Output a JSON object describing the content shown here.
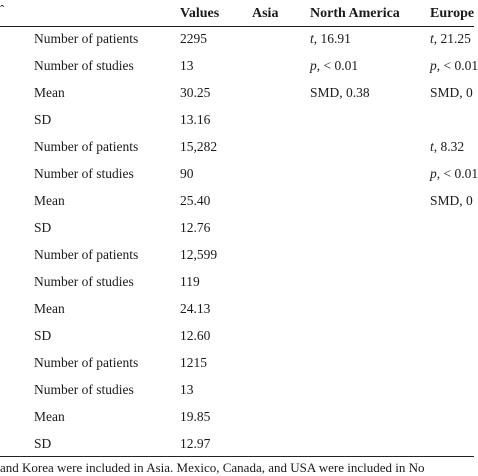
{
  "header": {
    "corner_mark": "ˆ",
    "values": "Values",
    "asia": "Asia",
    "north_america": "North America",
    "europe": "Europe"
  },
  "rows": [
    {
      "label": "Number of patients",
      "value": "2295",
      "na": {
        "key": "t",
        "rest": ", 16.91"
      },
      "eu": {
        "key": "t",
        "rest": ", 21.25"
      }
    },
    {
      "label": "Number of studies",
      "value": "13",
      "na": {
        "key": "p",
        "rest": ", < 0.01"
      },
      "eu": {
        "key": "p",
        "rest": ", < 0.01"
      }
    },
    {
      "label": "Mean",
      "value": "30.25",
      "na": {
        "key": "",
        "rest": "SMD, 0.38"
      },
      "eu": {
        "key": "",
        "rest": "SMD, 0"
      }
    },
    {
      "label": "SD",
      "value": "13.16",
      "na": {
        "key": "",
        "rest": ""
      },
      "eu": {
        "key": "",
        "rest": ""
      }
    },
    {
      "label": "Number of patients",
      "value": "15,282",
      "na": {
        "key": "",
        "rest": ""
      },
      "eu": {
        "key": "t",
        "rest": ", 8.32"
      }
    },
    {
      "label": "Number of studies",
      "value": "90",
      "na": {
        "key": "",
        "rest": ""
      },
      "eu": {
        "key": "p",
        "rest": ", < 0.01"
      }
    },
    {
      "label": "Mean",
      "value": "25.40",
      "na": {
        "key": "",
        "rest": ""
      },
      "eu": {
        "key": "",
        "rest": "SMD, 0"
      }
    },
    {
      "label": "SD",
      "value": "12.76",
      "na": {
        "key": "",
        "rest": ""
      },
      "eu": {
        "key": "",
        "rest": ""
      }
    },
    {
      "label": "Number of patients",
      "value": "12,599",
      "na": {
        "key": "",
        "rest": ""
      },
      "eu": {
        "key": "",
        "rest": ""
      }
    },
    {
      "label": "Number of studies",
      "value": "119",
      "na": {
        "key": "",
        "rest": ""
      },
      "eu": {
        "key": "",
        "rest": ""
      }
    },
    {
      "label": "Mean",
      "value": "24.13",
      "na": {
        "key": "",
        "rest": ""
      },
      "eu": {
        "key": "",
        "rest": ""
      }
    },
    {
      "label": "SD",
      "value": "12.60",
      "na": {
        "key": "",
        "rest": ""
      },
      "eu": {
        "key": "",
        "rest": ""
      }
    },
    {
      "label": "Number of patients",
      "value": "1215",
      "na": {
        "key": "",
        "rest": ""
      },
      "eu": {
        "key": "",
        "rest": ""
      }
    },
    {
      "label": "Number of studies",
      "value": "13",
      "na": {
        "key": "",
        "rest": ""
      },
      "eu": {
        "key": "",
        "rest": ""
      }
    },
    {
      "label": "Mean",
      "value": "19.85",
      "na": {
        "key": "",
        "rest": ""
      },
      "eu": {
        "key": "",
        "rest": ""
      }
    },
    {
      "label": "SD",
      "value": "12.97",
      "na": {
        "key": "",
        "rest": ""
      },
      "eu": {
        "key": "",
        "rest": ""
      }
    }
  ],
  "footnote": "and Korea were included in Asia. Mexico, Canada, and USA were included in No"
}
